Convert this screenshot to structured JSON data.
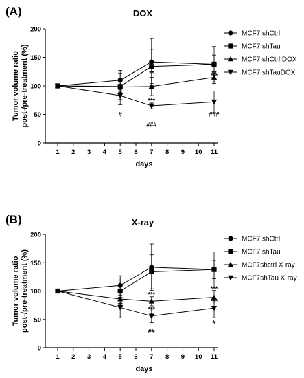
{
  "panel_labels": [
    "(A)",
    "(B)"
  ],
  "chart_data": [
    {
      "type": "line",
      "title": "DOX",
      "xlabel": "days",
      "ylabel": [
        "Tumor volume ratio",
        "post-/pre-treatment (%)"
      ],
      "xlim": [
        1,
        11
      ],
      "ylim": [
        0,
        200
      ],
      "xticks": [
        "1",
        "2",
        "3",
        "4",
        "5",
        "6",
        "7",
        "8",
        "9",
        "10",
        "11"
      ],
      "yticks": [
        "0",
        "50",
        "100",
        "150",
        "200"
      ],
      "legend_position": "top-right",
      "series": [
        {
          "name": "MCF7 shCtrl",
          "marker": "circle",
          "x": [
            1,
            5,
            7,
            11
          ],
          "y": [
            100,
            110,
            142,
            138
          ],
          "err": [
            0,
            17,
            41,
            31
          ]
        },
        {
          "name": "MCF7 shTau",
          "marker": "square",
          "x": [
            1,
            5,
            7,
            11
          ],
          "y": [
            100,
            99,
            134,
            138
          ],
          "err": [
            0,
            23,
            30,
            16
          ]
        },
        {
          "name": "MCF7 shCtrl DOX",
          "marker": "triangle-up",
          "x": [
            1,
            5,
            7,
            11
          ],
          "y": [
            100,
            98,
            99,
            115
          ],
          "err": [
            0,
            9,
            16,
            11
          ]
        },
        {
          "name": "MCF7 shTauDOX",
          "marker": "triangle-down",
          "x": [
            1,
            5,
            7,
            11
          ],
          "y": [
            100,
            83,
            65,
            72
          ],
          "err": [
            0,
            16,
            5,
            19
          ]
        }
      ],
      "annotations": [
        {
          "text": "*",
          "x": 5,
          "y": 86
        },
        {
          "text": "#",
          "x": 5,
          "y": 50
        },
        {
          "text": "**",
          "x": 7,
          "y": 122
        },
        {
          "text": "***",
          "x": 7,
          "y": 74
        },
        {
          "text": "###",
          "x": 7,
          "y": 32
        },
        {
          "text": "**",
          "x": 11,
          "y": 122
        },
        {
          "text": "***",
          "x": 11,
          "y": 118
        },
        {
          "text": "###",
          "x": 11,
          "y": 50
        }
      ]
    },
    {
      "type": "line",
      "title": "X-ray",
      "xlabel": "days",
      "ylabel": [
        "Tumor volume ratio",
        "post-/pre-treatment (%)"
      ],
      "xlim": [
        1,
        11
      ],
      "ylim": [
        0,
        200
      ],
      "xticks": [
        "1",
        "2",
        "3",
        "4",
        "5",
        "6",
        "7",
        "8",
        "9",
        "10",
        "11"
      ],
      "yticks": [
        "0",
        "50",
        "100",
        "150",
        "200"
      ],
      "legend_position": "top-right",
      "series": [
        {
          "name": "MCF7 shCtrl",
          "marker": "circle",
          "x": [
            1,
            5,
            7,
            11
          ],
          "y": [
            100,
            110,
            142,
            138
          ],
          "err": [
            0,
            17,
            41,
            31
          ]
        },
        {
          "name": "MCF7 shTau",
          "marker": "square",
          "x": [
            1,
            5,
            7,
            11
          ],
          "y": [
            100,
            100,
            134,
            138
          ],
          "err": [
            0,
            23,
            30,
            16
          ]
        },
        {
          "name": "MCF7shctrl X-ray",
          "marker": "triangle-up",
          "x": [
            1,
            5,
            7,
            11
          ],
          "y": [
            100,
            86,
            82,
            89
          ],
          "err": [
            0,
            11,
            8,
            12
          ]
        },
        {
          "name": "MCF7shTau X-ray",
          "marker": "triangle-down",
          "x": [
            1,
            5,
            7,
            11
          ],
          "y": [
            100,
            71,
            56,
            70
          ],
          "err": [
            0,
            18,
            12,
            17
          ]
        }
      ],
      "annotations": [
        {
          "text": "**",
          "x": 5,
          "y": 76
        },
        {
          "text": "***",
          "x": 7,
          "y": 94
        },
        {
          "text": "***",
          "x": 7,
          "y": 68
        },
        {
          "text": "##",
          "x": 7,
          "y": 30
        },
        {
          "text": "***",
          "x": 11,
          "y": 104
        },
        {
          "text": "***",
          "x": 11,
          "y": 82
        },
        {
          "text": "#",
          "x": 11,
          "y": 45
        }
      ]
    }
  ]
}
